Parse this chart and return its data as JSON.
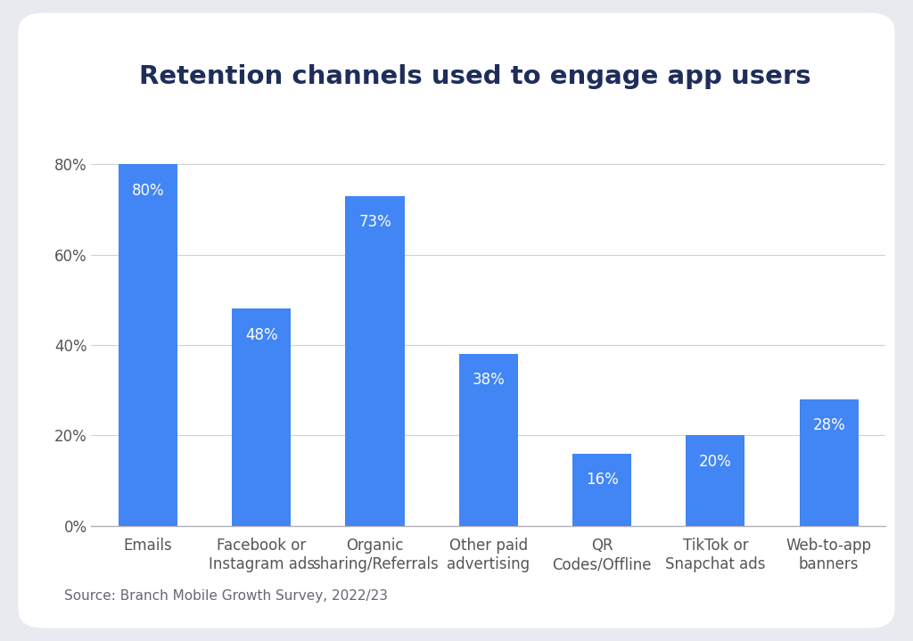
{
  "title": "Retention channels used to engage app users",
  "categories": [
    "Emails",
    "Facebook or\nInstagram ads",
    "Organic\nsharing/Referrals",
    "Other paid\nadvertising",
    "QR\nCodes/Offline",
    "TikTok or\nSnapchat ads",
    "Web-to-app\nbanners"
  ],
  "values": [
    80,
    48,
    73,
    38,
    16,
    20,
    28
  ],
  "bar_color": "#4285F4",
  "label_color": "#ffffff",
  "title_color": "#1e2d5a",
  "tick_color": "#555555",
  "outer_bg_color": "#e8eaf0",
  "card_bg_color": "#ffffff",
  "chart_area_color": "#ffffff",
  "grid_color": "#d0d0d8",
  "source_text": "Source: Branch Mobile Growth Survey, 2022/23",
  "source_color": "#666677",
  "ylim": [
    0,
    88
  ],
  "yticks": [
    0,
    20,
    40,
    60,
    80
  ],
  "ytick_labels": [
    "0%",
    "20%",
    "40%",
    "60%",
    "80%"
  ],
  "title_fontsize": 21,
  "label_fontsize": 12,
  "tick_fontsize": 12,
  "source_fontsize": 11,
  "bar_width": 0.52
}
